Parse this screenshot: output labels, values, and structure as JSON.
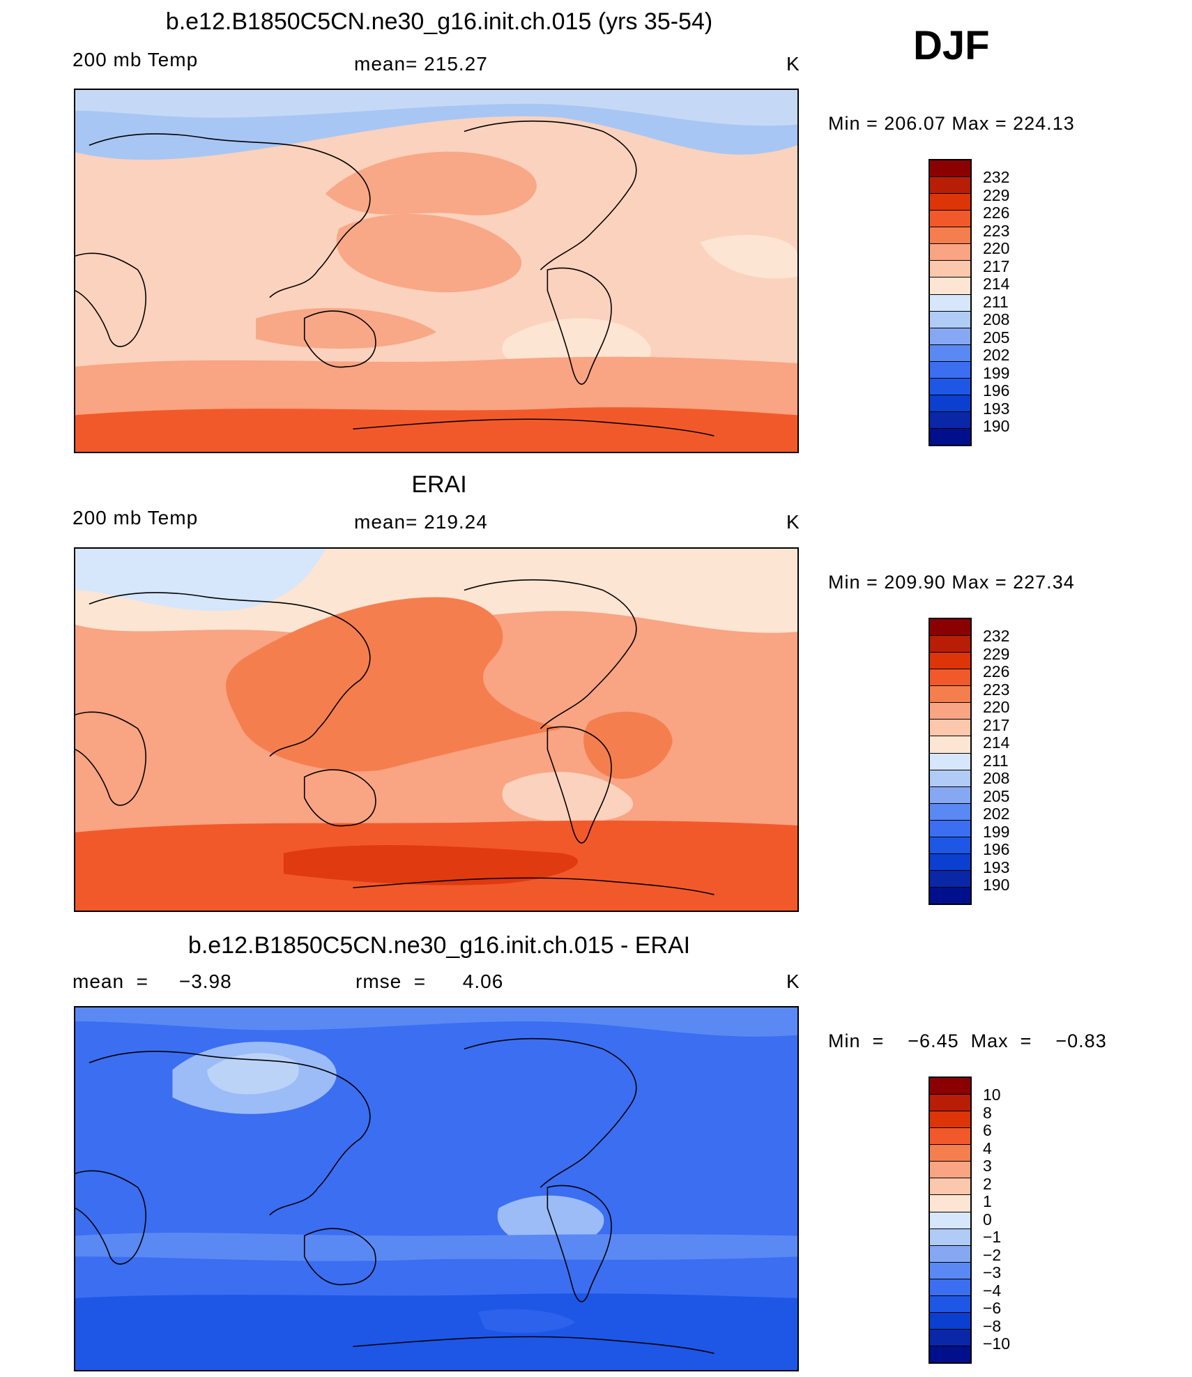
{
  "season": "DJF",
  "panels": [
    {
      "title": "b.e12.B1850C5CN.ne30_g16.init.ch.015 (yrs 35-54)",
      "left_label": "200 mb Temp",
      "center_label": "mean=  215.27",
      "right_label": "K",
      "min_max": "Min  =  206.07  Max  =  224.13",
      "legend_levels": [
        "232",
        "229",
        "226",
        "223",
        "220",
        "217",
        "214",
        "211",
        "208",
        "205",
        "202",
        "199",
        "196",
        "193",
        "190"
      ],
      "colors": {
        "base": "#fbd2bd",
        "band_north": "#c5d9f7",
        "band_south": "#f9a483",
        "pole_south": "#f2592a",
        "pacific": "#f8a887",
        "light": "#fde5d3",
        "arctic": "#a8c6f3"
      }
    },
    {
      "title": "ERAI",
      "left_label": "200 mb Temp",
      "center_label": "mean=  219.24",
      "right_label": "K",
      "min_max": "Min  =  209.90  Max  =  227.34",
      "legend_levels": [
        "232",
        "229",
        "226",
        "223",
        "220",
        "217",
        "214",
        "211",
        "208",
        "205",
        "202",
        "199",
        "196",
        "193",
        "190"
      ],
      "colors": {
        "base": "#f9a483",
        "band_north": "#fde5d3",
        "band_south": "#f2592a",
        "pole_south": "#e03a10",
        "pacific": "#f57e4f",
        "light": "#fbd2bd",
        "arctic": "#d6e6fb"
      }
    },
    {
      "title": "b.e12.B1850C5CN.ne30_g16.init.ch.015 - ERAI",
      "left_label": "mean  =     −3.98",
      "center_label": "rmse  =      4.06",
      "right_label": "K",
      "min_max": "Min  =    −6.45  Max  =    −0.83",
      "legend_levels": [
        "10",
        "8",
        "6",
        "4",
        "3",
        "2",
        "1",
        "0",
        "−1",
        "−2",
        "−3",
        "−4",
        "−6",
        "−8",
        "−10"
      ],
      "colors": {
        "base": "#3b6ef1",
        "band_north": "#5a89f3",
        "band_south": "#1e56e6",
        "pole_south": "#2e63ec",
        "pacific": "#2d62ec",
        "light": "#9bbcf6",
        "arctic": "#bcd3f8"
      }
    }
  ],
  "colorbar_colors": [
    "#8b0000",
    "#b81d05",
    "#dd3508",
    "#f2592a",
    "#f57e4f",
    "#f9a483",
    "#fbc7ad",
    "#fde5d3",
    "#d6e6fb",
    "#b1cbf7",
    "#86a8f3",
    "#5a89f3",
    "#3b6ef1",
    "#1e56e6",
    "#0a3fd0",
    "#0a27a8",
    "#00108c"
  ]
}
